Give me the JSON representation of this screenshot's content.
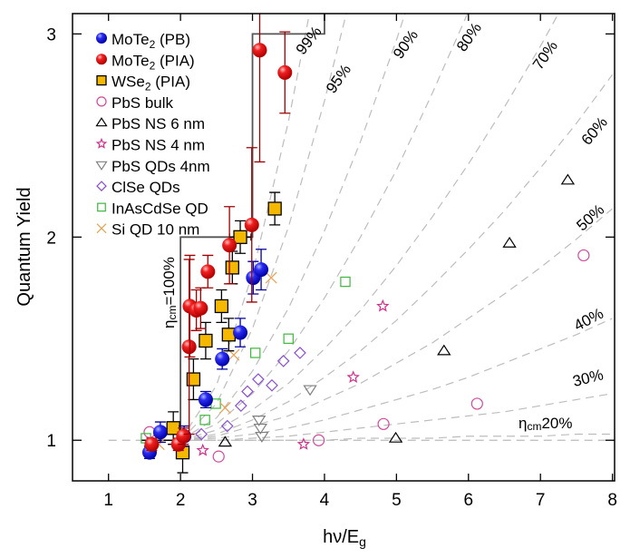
{
  "chart_data": {
    "type": "scatter",
    "xlabel": "hν/E",
    "xlabel_sub": "g",
    "ylabel": "Quantum Yield",
    "xlim": [
      0.5,
      8.03
    ],
    "ylim": [
      0.8,
      3.1
    ],
    "xticks": [
      "1",
      "2",
      "3",
      "4",
      "5",
      "6",
      "7",
      "8"
    ],
    "yticks": [
      "1",
      "2",
      "3"
    ],
    "grid": false,
    "legend_placement": "top-left",
    "series": [
      {
        "name": "MoTe",
        "sub": "2",
        "suffix": " (PB)",
        "marker": "ball",
        "color": "#1010e0",
        "points": [
          [
            1.57,
            0.94,
            0.05,
            0.03
          ],
          [
            1.72,
            1.04,
            0.05,
            0.05
          ],
          [
            2.05,
            1.02,
            0.05,
            0.05
          ],
          [
            2.35,
            1.2,
            0.05,
            0.04
          ],
          [
            2.58,
            1.4,
            0.06,
            0.05
          ],
          [
            2.83,
            1.53,
            0.06,
            0.07
          ],
          [
            3.01,
            1.8,
            0.07,
            0.08
          ],
          [
            3.12,
            1.84,
            0.07,
            0.1
          ]
        ]
      },
      {
        "name": "MoTe",
        "sub": "2",
        "suffix": " (PIA)",
        "marker": "ball",
        "color": "#ee1010",
        "points": [
          [
            1.6,
            0.98,
            0.05,
            0.03
          ],
          [
            1.97,
            0.98,
            0.05,
            0.03
          ],
          [
            2.04,
            1.02,
            0.05,
            0.04
          ],
          [
            2.12,
            1.46,
            0.05,
            0.43
          ],
          [
            2.13,
            1.66,
            0.05,
            0.25
          ],
          [
            2.22,
            1.64,
            0.05,
            0.1
          ],
          [
            2.28,
            1.65,
            0.05,
            0.1
          ],
          [
            2.38,
            1.83,
            0.05,
            0.08
          ],
          [
            2.68,
            1.96,
            0.05,
            0.19
          ],
          [
            2.99,
            2.06,
            0.05,
            0.38
          ],
          [
            3.1,
            2.92,
            0.05,
            0.55
          ],
          [
            3.45,
            2.81,
            0.05,
            0.2
          ]
        ]
      },
      {
        "name": "WSe",
        "sub": "2",
        "suffix": " (PIA)",
        "marker": "square-filled",
        "color": "#f5b800",
        "points": [
          [
            1.9,
            1.06,
            0.05,
            0.08
          ],
          [
            2.03,
            0.94,
            0.05,
            0.1
          ],
          [
            2.18,
            1.3,
            0.05,
            0.1
          ],
          [
            2.35,
            1.49,
            0.05,
            0.09
          ],
          [
            2.57,
            1.66,
            0.07,
            0.08
          ],
          [
            2.67,
            1.52,
            0.07,
            0.08
          ],
          [
            2.72,
            1.85,
            0.08,
            0.08
          ],
          [
            2.83,
            2.0,
            0.15,
            0.08
          ],
          [
            3.31,
            2.14,
            0.08,
            0.08
          ]
        ]
      },
      {
        "name": "PbS bulk",
        "marker": "circle",
        "color": "#d04a9a",
        "points": [
          [
            1.57,
            1.04
          ],
          [
            2.53,
            0.92
          ],
          [
            3.92,
            1.0
          ],
          [
            4.82,
            1.08
          ],
          [
            6.12,
            1.18
          ],
          [
            7.6,
            1.91
          ]
        ]
      },
      {
        "name": "PbS NS 6 nm",
        "marker": "triangle-up",
        "color": "#000000",
        "points": [
          [
            2.62,
            0.99
          ],
          [
            4.99,
            1.01
          ],
          [
            5.66,
            1.44
          ],
          [
            6.57,
            1.97
          ],
          [
            7.38,
            2.28
          ]
        ]
      },
      {
        "name": "PbS NS 4 nm",
        "marker": "star",
        "color": "#d0308a",
        "points": [
          [
            2.31,
            0.95
          ],
          [
            3.71,
            0.98
          ],
          [
            4.4,
            1.31
          ],
          [
            4.81,
            1.66
          ]
        ]
      },
      {
        "name": "PbS QDs 4nm",
        "marker": "triangle-down",
        "color": "#808080",
        "points": [
          [
            3.09,
            1.1
          ],
          [
            3.11,
            1.06
          ],
          [
            3.13,
            1.02
          ],
          [
            3.8,
            1.25
          ]
        ]
      },
      {
        "name": "ClSe QDs",
        "marker": "diamond",
        "color": "#8a4fd0",
        "points": [
          [
            2.29,
            1.03
          ],
          [
            2.65,
            1.07
          ],
          [
            2.84,
            1.17
          ],
          [
            2.93,
            1.24
          ],
          [
            3.08,
            1.3
          ],
          [
            3.27,
            1.27
          ],
          [
            3.43,
            1.39
          ],
          [
            3.66,
            1.43
          ]
        ]
      },
      {
        "name": "InAsCdSe  QD",
        "marker": "square",
        "color": "#3cb83c",
        "points": [
          [
            1.52,
            1.01
          ],
          [
            2.34,
            1.1
          ],
          [
            2.49,
            1.18
          ],
          [
            3.04,
            1.43
          ],
          [
            3.5,
            1.5
          ],
          [
            4.29,
            1.78
          ]
        ]
      },
      {
        "name": "Si QD 10 nm",
        "marker": "x",
        "color": "#e8a050",
        "points": [
          [
            1.7,
            0.98
          ],
          [
            2.62,
            1.16
          ],
          [
            2.74,
            1.42
          ],
          [
            3.26,
            1.8
          ]
        ]
      }
    ],
    "efficiency_curves": {
      "x": [
        2,
        2.5,
        3,
        3.5,
        4,
        4.5,
        5,
        5.5,
        6,
        6.5,
        7,
        7.5,
        8
      ],
      "curves": [
        {
          "label": "99%",
          "y": [
            1,
            1.27,
            1.82,
            2.57,
            3.48
          ]
        },
        {
          "label": "95%",
          "y": [
            1,
            1.18,
            1.55,
            2.05,
            2.67,
            3.38
          ]
        },
        {
          "label": "90%",
          "y": [
            1,
            1.11,
            1.34,
            1.65,
            2.03,
            2.47,
            2.97,
            3.52
          ]
        },
        {
          "label": "80%",
          "y": [
            1,
            1.08,
            1.23,
            1.44,
            1.7,
            2.0,
            2.33,
            2.71,
            3.11
          ]
        },
        {
          "label": "70%",
          "y": [
            1,
            1.05,
            1.15,
            1.28,
            1.45,
            1.64,
            1.86,
            2.1,
            2.36,
            2.64,
            2.94,
            3.26
          ]
        },
        {
          "label": "60%",
          "y": [
            1,
            1.03,
            1.1,
            1.19,
            1.31,
            1.44,
            1.59,
            1.76,
            1.94,
            2.13,
            2.34,
            2.56,
            2.8
          ]
        },
        {
          "label": "50%",
          "y": [
            1,
            1.02,
            1.07,
            1.12,
            1.2,
            1.28,
            1.38,
            1.48,
            1.6,
            1.72,
            1.85,
            1.99,
            2.14
          ]
        },
        {
          "label": "40%",
          "y": [
            1,
            1.01,
            1.03,
            1.06,
            1.1,
            1.15,
            1.2,
            1.25,
            1.31,
            1.38,
            1.45,
            1.52,
            1.6
          ]
        },
        {
          "label": "30%",
          "y": [
            1,
            1.0,
            1.01,
            1.02,
            1.04,
            1.06,
            1.08,
            1.1,
            1.12,
            1.14,
            1.17,
            1.2,
            1.23
          ]
        },
        {
          "label": "20%",
          "prefix": "η",
          "prefix_sub": "cm",
          "y": [
            1,
            1,
            1,
            1,
            1,
            1.01,
            1.01,
            1.01,
            1.02,
            1.02,
            1.02,
            1.03,
            1.03
          ]
        }
      ]
    },
    "step_curve": {
      "label": "=100%",
      "prefix": "η",
      "prefix_sub": "cm",
      "points": [
        [
          1.45,
          1
        ],
        [
          2,
          1
        ],
        [
          2,
          2
        ],
        [
          3,
          2
        ],
        [
          3,
          3
        ],
        [
          4,
          3
        ],
        [
          4,
          3.1
        ]
      ]
    }
  }
}
